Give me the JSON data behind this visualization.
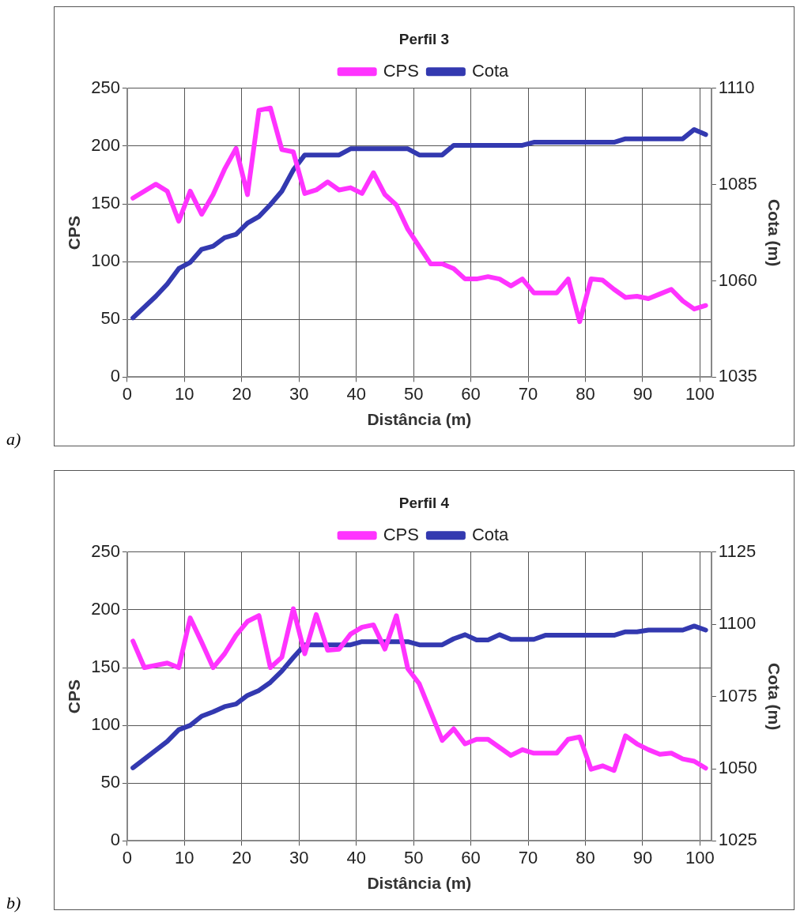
{
  "chart_data": [
    {
      "type": "line",
      "title": "Perfil 3",
      "xlabel": "Distância (m)",
      "ylabel": "CPS",
      "y2label": "Cota (m)",
      "xlim": [
        0,
        102
      ],
      "xticks": [
        0,
        10,
        20,
        30,
        40,
        50,
        60,
        70,
        80,
        90,
        100
      ],
      "ylim": [
        0,
        250
      ],
      "yticks": [
        0,
        50,
        100,
        150,
        200,
        250
      ],
      "y2lim": [
        1035,
        1110
      ],
      "y2ticks": [
        1035,
        1060,
        1085,
        1110
      ],
      "grid": true,
      "legend": "top",
      "marker": "none",
      "annotations": [
        "a)"
      ],
      "series": [
        {
          "name": "CPS",
          "color": "#ff33ff",
          "x": [
            1,
            5,
            7,
            9,
            11,
            13,
            15,
            17,
            19,
            21,
            23,
            25,
            27,
            29,
            31,
            33,
            35,
            37,
            39,
            41,
            43,
            45,
            47,
            49,
            51,
            53,
            55,
            57,
            59,
            61,
            63,
            65,
            67,
            69,
            71,
            75,
            77,
            79,
            81,
            83,
            85,
            87,
            89,
            91,
            93,
            95,
            97,
            99,
            101
          ],
          "values": [
            155,
            167,
            161,
            135,
            161,
            141,
            158,
            180,
            198,
            158,
            231,
            233,
            197,
            195,
            159,
            162,
            169,
            162,
            164,
            159,
            177,
            158,
            149,
            128,
            113,
            98,
            98,
            94,
            85,
            85,
            87,
            85,
            79,
            85,
            73,
            73,
            85,
            48,
            85,
            84,
            76,
            69,
            70,
            68,
            72,
            76,
            66,
            59,
            62
          ]
        },
        {
          "name": "Cota",
          "color": "#3339b0",
          "axis": "y2",
          "x": [
            1,
            5,
            7,
            9,
            11,
            13,
            15,
            17,
            19,
            21,
            23,
            25,
            27,
            29,
            31,
            37,
            39,
            49,
            51,
            55,
            57,
            69,
            71,
            85,
            87,
            97,
            99,
            101
          ],
          "values": [
            1050.4,
            1056,
            1059.2,
            1063.2,
            1064.8,
            1068.2,
            1069,
            1071.2,
            1072.1,
            1075,
            1076.7,
            1079.8,
            1083.3,
            1088.8,
            1092.7,
            1092.7,
            1094.3,
            1094.3,
            1092.7,
            1092.7,
            1095.2,
            1095.2,
            1096,
            1096,
            1096.9,
            1096.9,
            1099.3,
            1098
          ]
        }
      ]
    },
    {
      "type": "line",
      "title": "Perfil 4",
      "xlabel": "Distância (m)",
      "ylabel": "CPS",
      "y2label": "Cota (m)",
      "xlim": [
        0,
        102
      ],
      "xticks": [
        0,
        10,
        20,
        30,
        40,
        50,
        60,
        70,
        80,
        90,
        100
      ],
      "ylim": [
        0,
        250
      ],
      "yticks": [
        0,
        50,
        100,
        150,
        200,
        250
      ],
      "y2lim": [
        1025,
        1125
      ],
      "y2ticks": [
        1025,
        1050,
        1075,
        1100,
        1125
      ],
      "grid": true,
      "legend": "top",
      "marker": "none",
      "annotations": [
        "b)"
      ],
      "series": [
        {
          "name": "CPS",
          "color": "#ff33ff",
          "x": [
            1,
            3,
            7,
            9,
            11,
            13,
            15,
            17,
            19,
            21,
            23,
            25,
            27,
            29,
            31,
            33,
            35,
            37,
            39,
            41,
            43,
            45,
            47,
            49,
            51,
            55,
            57,
            59,
            61,
            63,
            65,
            67,
            69,
            71,
            75,
            77,
            79,
            81,
            83,
            85,
            87,
            89,
            91,
            93,
            95,
            97,
            99,
            101
          ],
          "values": [
            173,
            150,
            154,
            150,
            193,
            172,
            150,
            162,
            178,
            190,
            195,
            150,
            159,
            201,
            162,
            196,
            165,
            166,
            179,
            185,
            187,
            166,
            195,
            149,
            136,
            87,
            97,
            84,
            88,
            88,
            81,
            74,
            79,
            76,
            76,
            88,
            90,
            62,
            65,
            61,
            91,
            84,
            79,
            75,
            76,
            71,
            69,
            63
          ]
        },
        {
          "name": "Cota",
          "color": "#3339b0",
          "axis": "y2",
          "x": [
            1,
            7,
            9,
            11,
            13,
            15,
            17,
            19,
            21,
            23,
            25,
            27,
            29,
            31,
            39,
            41,
            49,
            51,
            55,
            57,
            59,
            61,
            63,
            65,
            67,
            71,
            73,
            85,
            87,
            89,
            91,
            97,
            99,
            101
          ],
          "values": [
            1050.3,
            1059.5,
            1063.5,
            1065,
            1068.2,
            1069.7,
            1071.5,
            1072.4,
            1075.4,
            1077.1,
            1079.9,
            1083.8,
            1088.5,
            1092.9,
            1092.9,
            1094,
            1094,
            1092.9,
            1092.9,
            1095,
            1096.4,
            1094.6,
            1094.6,
            1096.4,
            1094.8,
            1094.8,
            1096.2,
            1096.2,
            1097.4,
            1097.4,
            1098,
            1098,
            1099.4,
            1098
          ]
        }
      ]
    }
  ]
}
